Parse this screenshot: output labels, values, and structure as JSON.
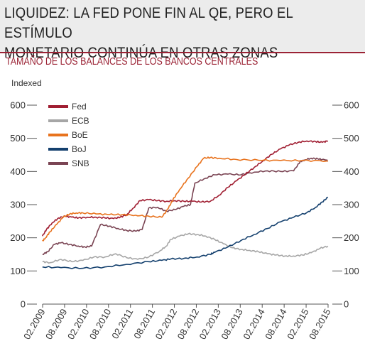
{
  "title": "LIQUIDEZ: LA FED PONE FIN AL QE, PERO EL ESTÍMULO\nMONETARIO CONTINÚA EN OTRAS ZONAS",
  "colors": {
    "accent": "#9b2335",
    "Fed": "#a01e32",
    "ECB": "#a6a6a6",
    "BoE": "#e8731e",
    "BoJ": "#14406e",
    "SNB": "#7a4453"
  },
  "chart_data": {
    "type": "line",
    "title": "TAMAÑO DE LOS BALANCES DE LOS BANCOS CENTRALES",
    "ylabel": "Indexed",
    "ylim": [
      0,
      600
    ],
    "yticks": [
      0,
      100,
      200,
      300,
      400,
      500,
      600
    ],
    "ytick_labels": [
      "0",
      "100",
      "200",
      "300",
      "400",
      "500",
      "600"
    ],
    "xlim": [
      2009.083,
      2015.583
    ],
    "xtick_labels": [
      "02.2009",
      "08.2009",
      "02.2010",
      "08.2010",
      "02.2011",
      "08.2011",
      "02.2012",
      "08.2012",
      "02.2013",
      "08.2013",
      "02.2014",
      "08.2014",
      "02.2015",
      "08.2015"
    ],
    "grid": false,
    "legend_position": "top-left",
    "series": [
      {
        "name": "Fed",
        "x": [
          2009.08,
          2009.17,
          2009.3,
          2009.45,
          2009.6,
          2009.75,
          2009.9,
          2010.1,
          2010.3,
          2010.5,
          2010.7,
          2010.85,
          2011.0,
          2011.15,
          2011.3,
          2011.5,
          2011.7,
          2011.9,
          2012.1,
          2012.3,
          2012.5,
          2012.7,
          2012.9,
          2013.1,
          2013.3,
          2013.5,
          2013.7,
          2013.9,
          2014.1,
          2014.3,
          2014.5,
          2014.7,
          2014.9,
          2015.1,
          2015.3,
          2015.45,
          2015.58
        ],
        "y": [
          205,
          225,
          245,
          260,
          265,
          262,
          260,
          262,
          262,
          260,
          258,
          262,
          270,
          290,
          312,
          315,
          312,
          310,
          312,
          310,
          310,
          308,
          310,
          328,
          352,
          372,
          392,
          412,
          432,
          452,
          468,
          480,
          488,
          492,
          490,
          488,
          492
        ]
      },
      {
        "name": "ECB",
        "x": [
          2009.08,
          2009.25,
          2009.5,
          2009.75,
          2010.0,
          2010.25,
          2010.5,
          2010.75,
          2011.0,
          2011.25,
          2011.5,
          2011.75,
          2011.9,
          2012.0,
          2012.2,
          2012.4,
          2012.6,
          2012.8,
          2013.0,
          2013.2,
          2013.4,
          2013.6,
          2013.8,
          2014.0,
          2014.2,
          2014.4,
          2014.6,
          2014.8,
          2015.0,
          2015.2,
          2015.4,
          2015.58
        ],
        "y": [
          128,
          125,
          135,
          128,
          132,
          142,
          142,
          152,
          140,
          135,
          142,
          160,
          175,
          195,
          205,
          212,
          210,
          205,
          195,
          182,
          170,
          165,
          162,
          158,
          152,
          148,
          145,
          145,
          148,
          155,
          168,
          175
        ]
      },
      {
        "name": "BoE",
        "x": [
          2009.08,
          2009.15,
          2009.25,
          2009.4,
          2009.55,
          2009.7,
          2009.85,
          2010.0,
          2010.3,
          2010.6,
          2010.9,
          2011.2,
          2011.5,
          2011.8,
          2011.95,
          2012.05,
          2012.2,
          2012.4,
          2012.6,
          2012.75,
          2012.9,
          2013.1,
          2013.5,
          2014.0,
          2014.5,
          2015.0,
          2015.58
        ],
        "y": [
          190,
          200,
          218,
          240,
          262,
          272,
          275,
          275,
          272,
          270,
          270,
          268,
          265,
          262,
          290,
          315,
          345,
          380,
          415,
          440,
          442,
          440,
          436,
          434,
          433,
          433,
          432
        ]
      },
      {
        "name": "BoJ",
        "x": [
          2009.08,
          2009.5,
          2010.0,
          2010.5,
          2011.0,
          2011.5,
          2011.8,
          2012.0,
          2012.3,
          2012.6,
          2012.9,
          2013.0,
          2013.3,
          2013.6,
          2013.9,
          2014.2,
          2014.5,
          2014.8,
          2015.1,
          2015.3,
          2015.45,
          2015.58
        ],
        "y": [
          112,
          110,
          108,
          112,
          120,
          128,
          132,
          136,
          138,
          142,
          150,
          156,
          172,
          192,
          210,
          228,
          248,
          262,
          276,
          292,
          308,
          322
        ]
      },
      {
        "name": "SNB",
        "x": [
          2009.08,
          2009.2,
          2009.35,
          2009.5,
          2009.7,
          2009.9,
          2010.05,
          2010.2,
          2010.4,
          2010.6,
          2010.8,
          2011.0,
          2011.2,
          2011.35,
          2011.5,
          2011.7,
          2011.9,
          2012.1,
          2012.3,
          2012.45,
          2012.55,
          2012.8,
          2013.0,
          2013.3,
          2013.6,
          2013.9,
          2014.2,
          2014.5,
          2014.8,
          2014.95,
          2015.05,
          2015.2,
          2015.35,
          2015.5,
          2015.58
        ],
        "y": [
          150,
          158,
          180,
          185,
          180,
          175,
          172,
          175,
          240,
          235,
          228,
          222,
          220,
          225,
          290,
          292,
          280,
          285,
          295,
          300,
          365,
          380,
          390,
          392,
          390,
          398,
          402,
          400,
          402,
          430,
          435,
          440,
          438,
          435,
          432
        ]
      }
    ]
  }
}
